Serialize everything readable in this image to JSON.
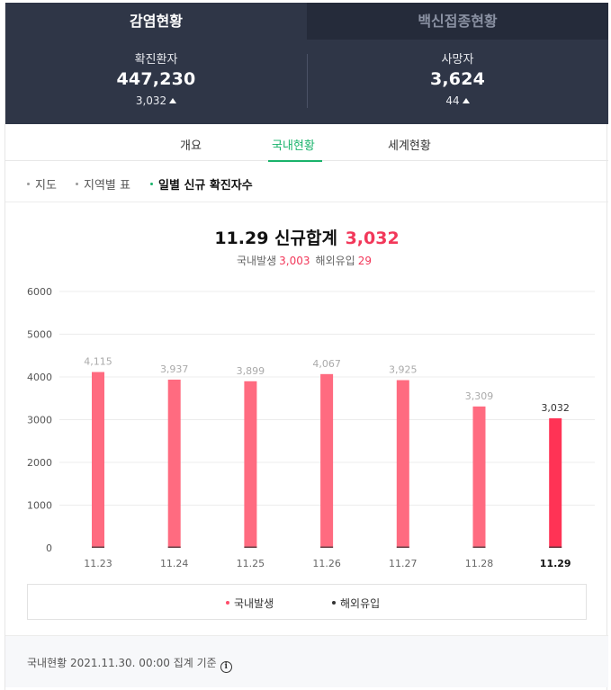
{
  "header": {
    "tabs": [
      {
        "label": "감염현황",
        "active": true
      },
      {
        "label": "백신접종현황",
        "active": false
      }
    ],
    "stats": [
      {
        "label": "확진환자",
        "value": "447,230",
        "delta": "3,032"
      },
      {
        "label": "사망자",
        "value": "3,624",
        "delta": "44"
      }
    ]
  },
  "subtabs": [
    {
      "label": "개요",
      "active": false
    },
    {
      "label": "국내현황",
      "active": true
    },
    {
      "label": "세계현황",
      "active": false
    }
  ],
  "chips": [
    {
      "label": "지도",
      "active": false
    },
    {
      "label": "지역별 표",
      "active": false
    },
    {
      "label": "일별 신규 확진자수",
      "active": true
    }
  ],
  "summary": {
    "title": "11.29 신규합계",
    "total": "3,032",
    "domestic_label": "국내발생",
    "domestic_value": "3,003",
    "overseas_label": "해외유입",
    "overseas_value": "29"
  },
  "chart_data": {
    "type": "bar",
    "stacked": true,
    "categories": [
      "11.23",
      "11.24",
      "11.25",
      "11.26",
      "11.27",
      "11.28",
      "11.29"
    ],
    "totals": [
      4115,
      3937,
      3899,
      4067,
      3925,
      3309,
      3032
    ],
    "total_labels": [
      "4,115",
      "3,937",
      "3,899",
      "4,067",
      "3,925",
      "3,309",
      "3,032"
    ],
    "series": [
      {
        "name": "국내발생",
        "color": "#ff6b80",
        "highlight_color": "#ff3355"
      },
      {
        "name": "해외유입",
        "color": "#333333"
      }
    ],
    "overseas_values": [
      null,
      null,
      null,
      null,
      null,
      null,
      29
    ],
    "ylim": [
      0,
      6000
    ],
    "yticks": [
      0,
      1000,
      2000,
      3000,
      4000,
      5000,
      6000
    ],
    "highlight_index": 6,
    "grid": true,
    "legend_position": "bottom"
  },
  "footer": {
    "text": "국내현황 2021.11.30. 00:00 집계 기준",
    "icon": "info-icon"
  },
  "colors": {
    "header_bg": "#2f3647",
    "accent_green": "#19b36b",
    "accent_red": "#f2385a"
  }
}
